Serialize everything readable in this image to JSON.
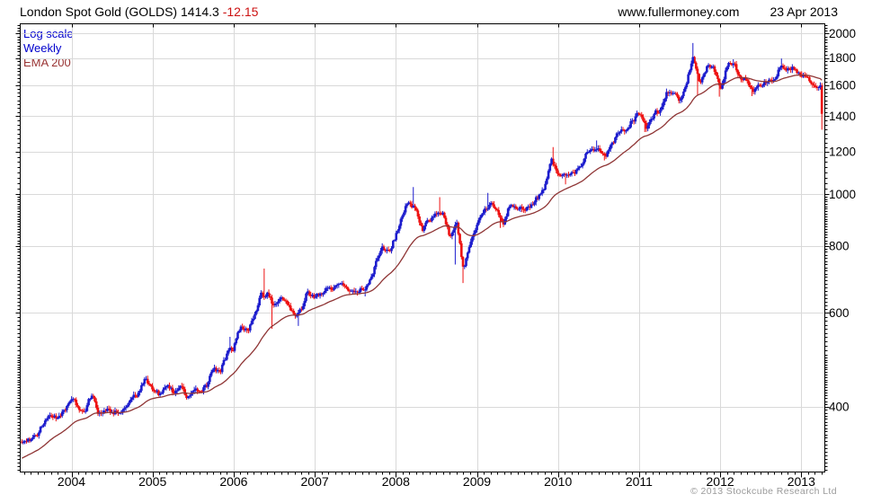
{
  "header": {
    "title": "London Spot Gold (GOLDS)",
    "price": "1414.3",
    "change": "-12.15",
    "website": "www.fullermoney.com",
    "date": "23 Apr 2013"
  },
  "legend": {
    "items": [
      {
        "label": "Log scale",
        "color": "#0000cc"
      },
      {
        "label": "Weekly",
        "color": "#0000cc"
      },
      {
        "label": "EMA 200",
        "color": "#993333"
      }
    ]
  },
  "footer": {
    "copyright": "© 2013 Stockcube Research Ltd"
  },
  "colors": {
    "up": "#1c1ccd",
    "down": "#ee1212",
    "ema": "#8f3535",
    "grid": "#d9d9d9",
    "axis": "#000000",
    "change_text": "#cc1111",
    "copyright_text": "#9b9b9b"
  },
  "chart_data": {
    "type": "candlestick-weekly-ohlc",
    "title": "London Spot Gold (GOLDS) 1414.3 -12.15",
    "subtitle": "Weekly bars, log scale, with EMA 200",
    "legend_position": "top-left",
    "grid": true,
    "x_axis": {
      "years": [
        2004,
        2005,
        2006,
        2007,
        2008,
        2009,
        2010,
        2011,
        2012,
        2013
      ],
      "labels": [
        "2004",
        "2005",
        "2006",
        "2007",
        "2008",
        "2009",
        "2010",
        "2011",
        "2012",
        "2013"
      ],
      "range_decimal_years": [
        2003.38,
        2013.31
      ],
      "minor_tick": "monthly"
    },
    "y_axis": {
      "scale": "log",
      "side": "right",
      "ticks": [
        400,
        600,
        800,
        1000,
        1200,
        1400,
        1600,
        1800,
        2000
      ],
      "range": [
        305,
        2080
      ]
    },
    "series": [
      {
        "name": "London Spot Gold weekly",
        "style": "ohlc-bars",
        "up_color": "#1c1ccd",
        "down_color": "#ee1212"
      },
      {
        "name": "EMA 200",
        "style": "line",
        "color": "#8f3535"
      }
    ],
    "monthly_close_start": "2003-06",
    "monthly_close": [
      346,
      355,
      375,
      385,
      385,
      398,
      415,
      400,
      397,
      424,
      388,
      394,
      393,
      391,
      407,
      416,
      426,
      452,
      437,
      423,
      436,
      428,
      435,
      418,
      437,
      430,
      438,
      470,
      466,
      498,
      517,
      569,
      556,
      583,
      651,
      653,
      613,
      634,
      623,
      601,
      604,
      646,
      636,
      651,
      665,
      662,
      677,
      660,
      651,
      666,
      672,
      742,
      790,
      784,
      834,
      924,
      972,
      934,
      866,
      886,
      928,
      914,
      833,
      885,
      725,
      815,
      870,
      920,
      952,
      917,
      888,
      976,
      934,
      939,
      953,
      996,
      1040,
      1176,
      1088,
      1079,
      1108,
      1114,
      1180,
      1213,
      1244,
      1169,
      1246,
      1307,
      1346,
      1384,
      1410,
      1327,
      1411,
      1439,
      1556,
      1537,
      1502,
      1628,
      1826,
      1620,
      1722,
      1746,
      1574,
      1737,
      1770,
      1662,
      1651,
      1558,
      1598,
      1614,
      1648,
      1776,
      1719,
      1726,
      1664,
      1664,
      1588,
      1598,
      1414.3
    ],
    "last_close": 1414.3,
    "extremes": [
      [
        2004.92,
        "h",
        457
      ],
      [
        2005.96,
        "h",
        541
      ],
      [
        2006.37,
        "h",
        726
      ],
      [
        2006.48,
        "l",
        560
      ],
      [
        2006.79,
        "l",
        567
      ],
      [
        2007.62,
        "l",
        644
      ],
      [
        2008.21,
        "h",
        1032
      ],
      [
        2008.54,
        "h",
        988
      ],
      [
        2008.74,
        "l",
        739
      ],
      [
        2008.82,
        "l",
        682
      ],
      [
        2009.14,
        "h",
        1006
      ],
      [
        2009.29,
        "l",
        865
      ],
      [
        2009.94,
        "h",
        1226
      ],
      [
        2010.1,
        "l",
        1044
      ],
      [
        2010.47,
        "h",
        1261
      ],
      [
        2010.58,
        "l",
        1157
      ],
      [
        2011.07,
        "l",
        1308
      ],
      [
        2011.34,
        "h",
        1577
      ],
      [
        2011.67,
        "h",
        1920
      ],
      [
        2011.73,
        "l",
        1534
      ],
      [
        2011.99,
        "l",
        1523
      ],
      [
        2012.16,
        "h",
        1790
      ],
      [
        2012.39,
        "l",
        1527
      ],
      [
        2012.76,
        "h",
        1796
      ],
      [
        2013.26,
        "l",
        1321
      ]
    ]
  }
}
